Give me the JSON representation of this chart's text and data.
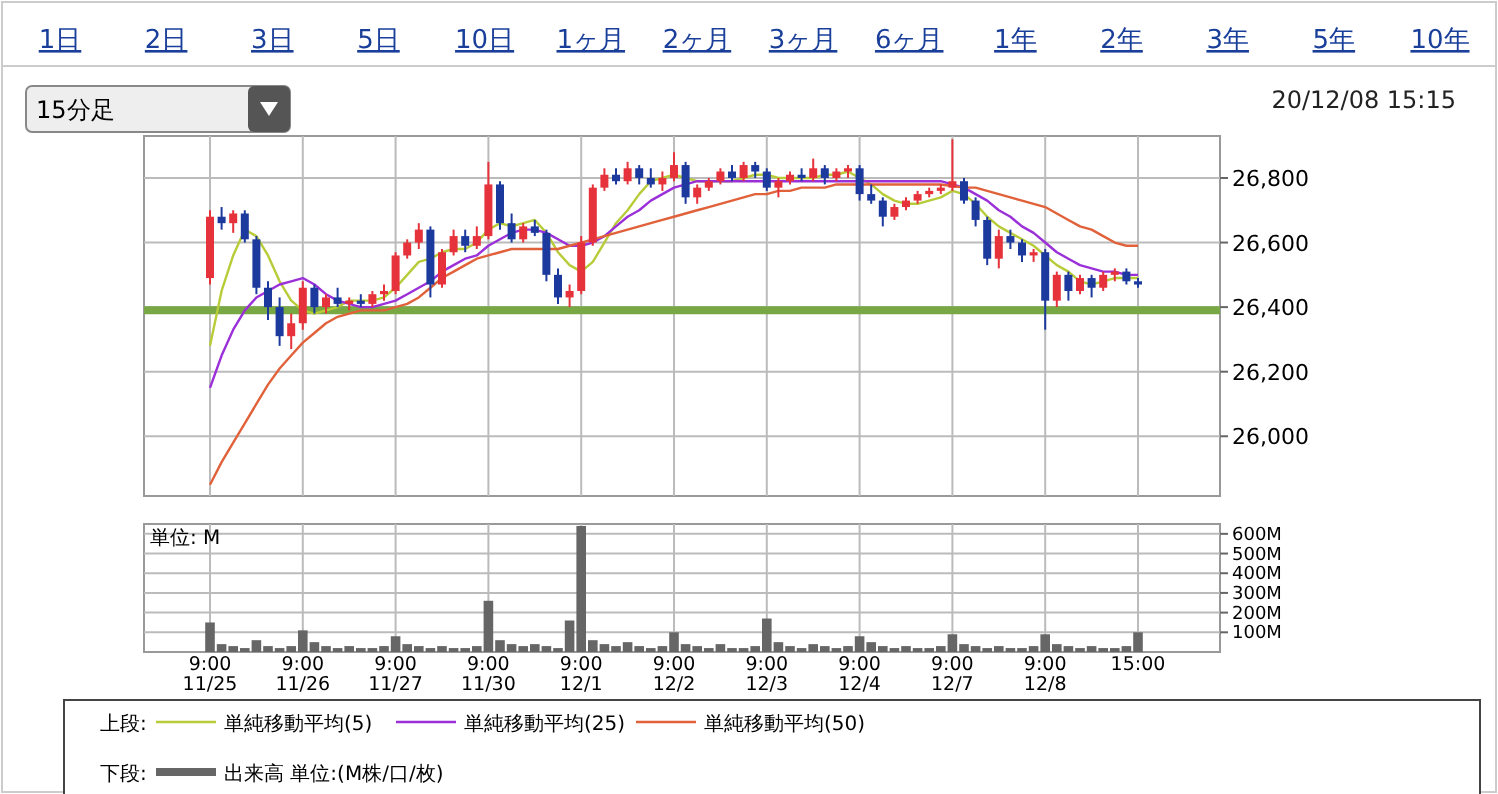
{
  "chart_data": [
    {
      "type": "candlestick",
      "title": null,
      "annotations": [
        "1日",
        "2日",
        "3日",
        "5日",
        "10日",
        "1ヶ月",
        "2ヶ月",
        "3ヶ月",
        "6ヶ月",
        "1年",
        "2年",
        "3年",
        "5年",
        "10年",
        "15分足",
        "20/12/08 15:15"
      ],
      "categories": [
        null,
        null,
        null,
        null,
        null,
        null,
        null,
        null,
        null,
        null,
        null,
        null,
        null,
        null,
        null,
        null,
        null,
        null,
        null,
        null,
        null,
        null,
        null,
        null,
        null,
        null,
        null,
        null,
        null,
        null,
        null,
        null,
        null,
        null,
        null,
        null,
        null,
        null,
        null,
        null,
        null,
        null,
        null,
        null,
        null,
        null,
        null,
        null,
        null,
        null,
        null,
        null,
        null,
        null,
        null,
        null,
        null,
        null,
        null,
        null,
        null,
        null,
        null,
        null,
        null,
        null,
        null,
        null,
        null,
        null,
        null,
        null,
        null,
        null,
        null,
        null,
        null,
        null,
        null,
        null,
        null
      ],
      "ohlc": [
        [
          26490,
          26700,
          26470,
          26680
        ],
        [
          26680,
          26710,
          26640,
          26660
        ],
        [
          26660,
          26700,
          26630,
          26690
        ],
        [
          26690,
          26700,
          26600,
          26610
        ],
        [
          26610,
          26620,
          26440,
          26460
        ],
        [
          26460,
          26480,
          26360,
          26400
        ],
        [
          26400,
          26430,
          26280,
          26310
        ],
        [
          26310,
          26380,
          26270,
          26350
        ],
        [
          26350,
          26480,
          26330,
          26460
        ],
        [
          26460,
          26470,
          26380,
          26400
        ],
        [
          26400,
          26440,
          26380,
          26430
        ],
        [
          26430,
          26460,
          26400,
          26410
        ],
        [
          26410,
          26430,
          26390,
          26420
        ],
        [
          26420,
          26440,
          26400,
          26410
        ],
        [
          26410,
          26450,
          26400,
          26440
        ],
        [
          26440,
          26470,
          26420,
          26450
        ],
        [
          26450,
          26570,
          26440,
          26560
        ],
        [
          26560,
          26610,
          26550,
          26600
        ],
        [
          26600,
          26660,
          26580,
          26640
        ],
        [
          26640,
          26650,
          26430,
          26470
        ],
        [
          26470,
          26580,
          26460,
          26570
        ],
        [
          26570,
          26640,
          26560,
          26620
        ],
        [
          26620,
          26640,
          26570,
          26590
        ],
        [
          26590,
          26650,
          26580,
          26620
        ],
        [
          26620,
          26850,
          26610,
          26780
        ],
        [
          26780,
          26790,
          26640,
          26660
        ],
        [
          26660,
          26690,
          26600,
          26610
        ],
        [
          26610,
          26660,
          26600,
          26650
        ],
        [
          26650,
          26670,
          26620,
          26630
        ],
        [
          26630,
          26640,
          26480,
          26500
        ],
        [
          26500,
          26520,
          26410,
          26430
        ],
        [
          26430,
          26470,
          26400,
          26450
        ],
        [
          26450,
          26620,
          26440,
          26600
        ],
        [
          26600,
          26780,
          26590,
          26770
        ],
        [
          26770,
          26830,
          26760,
          26810
        ],
        [
          26810,
          26830,
          26780,
          26790
        ],
        [
          26790,
          26850,
          26780,
          26830
        ],
        [
          26830,
          26840,
          26780,
          26800
        ],
        [
          26800,
          26830,
          26770,
          26780
        ],
        [
          26780,
          26820,
          26760,
          26800
        ],
        [
          26800,
          26880,
          26790,
          26840
        ],
        [
          26840,
          26850,
          26720,
          26740
        ],
        [
          26740,
          26780,
          26720,
          26770
        ],
        [
          26770,
          26800,
          26760,
          26790
        ],
        [
          26790,
          26830,
          26780,
          26820
        ],
        [
          26820,
          26840,
          26790,
          26800
        ],
        [
          26800,
          26850,
          26790,
          26840
        ],
        [
          26840,
          26850,
          26800,
          26820
        ],
        [
          26820,
          26830,
          26760,
          26770
        ],
        [
          26770,
          26800,
          26740,
          26790
        ],
        [
          26790,
          26820,
          26780,
          26810
        ],
        [
          26810,
          26830,
          26790,
          26800
        ],
        [
          26800,
          26860,
          26790,
          26830
        ],
        [
          26830,
          26840,
          26780,
          26800
        ],
        [
          26800,
          26830,
          26790,
          26820
        ],
        [
          26820,
          26840,
          26800,
          26830
        ],
        [
          26830,
          26840,
          26730,
          26750
        ],
        [
          26750,
          26780,
          26720,
          26730
        ],
        [
          26730,
          26740,
          26650,
          26680
        ],
        [
          26680,
          26720,
          26670,
          26710
        ],
        [
          26710,
          26740,
          26700,
          26730
        ],
        [
          26730,
          26760,
          26720,
          26750
        ],
        [
          26750,
          26770,
          26740,
          26760
        ],
        [
          26760,
          26780,
          26750,
          26770
        ],
        [
          26770,
          26920,
          26760,
          26790
        ],
        [
          26790,
          26800,
          26720,
          26730
        ],
        [
          26730,
          26740,
          26650,
          26670
        ],
        [
          26670,
          26680,
          26530,
          26550
        ],
        [
          26550,
          26640,
          26520,
          26620
        ],
        [
          26620,
          26640,
          26580,
          26600
        ],
        [
          26600,
          26610,
          26540,
          26560
        ],
        [
          26560,
          26580,
          26540,
          26570
        ],
        [
          26570,
          26580,
          26330,
          26420
        ],
        [
          26420,
          26510,
          26400,
          26500
        ],
        [
          26500,
          26510,
          26420,
          26450
        ],
        [
          26450,
          26500,
          26440,
          26490
        ],
        [
          26490,
          26500,
          26430,
          26460
        ],
        [
          26460,
          26510,
          26450,
          26500
        ],
        [
          26500,
          26520,
          26480,
          26510
        ],
        [
          26510,
          26520,
          26470,
          26480
        ],
        [
          26480,
          26490,
          26460,
          26470
        ]
      ],
      "series": [
        {
          "name": "単純移動平均(5)",
          "type": "line",
          "color": "#b8cc3a",
          "values": [
            26280,
            26450,
            26560,
            26640,
            26620,
            26560,
            26480,
            26420,
            26390,
            26380,
            26390,
            26400,
            26420,
            26420,
            26420,
            26430,
            26460,
            26500,
            26540,
            26550,
            26570,
            26580,
            26580,
            26600,
            26640,
            26660,
            26650,
            26660,
            26670,
            26630,
            26570,
            26530,
            26510,
            26540,
            26600,
            26660,
            26700,
            26750,
            26790,
            26800,
            26810,
            26800,
            26790,
            26790,
            26790,
            26790,
            26800,
            26810,
            26810,
            26800,
            26800,
            26800,
            26800,
            26810,
            26810,
            26820,
            26800,
            26780,
            26750,
            26730,
            26720,
            26720,
            26730,
            26740,
            26760,
            26750,
            26720,
            26680,
            26650,
            26630,
            26610,
            26590,
            26560,
            26530,
            26510,
            26480,
            26470,
            26480,
            26490,
            26490,
            26490
          ]
        },
        {
          "name": "単純移動平均(25)",
          "type": "line",
          "color": "#9b30d9",
          "values": [
            26150,
            26250,
            26330,
            26390,
            26430,
            26450,
            26470,
            26480,
            26490,
            26470,
            26440,
            26420,
            26410,
            26400,
            26400,
            26410,
            26420,
            26440,
            26460,
            26480,
            26510,
            26530,
            26550,
            26560,
            26590,
            26610,
            26630,
            26640,
            26640,
            26630,
            26610,
            26590,
            26590,
            26600,
            26620,
            26650,
            26680,
            26700,
            26730,
            26750,
            26770,
            26780,
            26790,
            26790,
            26790,
            26790,
            26790,
            26790,
            26790,
            26790,
            26790,
            26790,
            26790,
            26790,
            26790,
            26790,
            26790,
            26790,
            26790,
            26790,
            26790,
            26790,
            26790,
            26790,
            26780,
            26770,
            26750,
            26730,
            26700,
            26680,
            26650,
            26630,
            26600,
            26570,
            26550,
            26530,
            26520,
            26510,
            26510,
            26500,
            26500
          ]
        },
        {
          "name": "単純移動平均(50)",
          "type": "line",
          "color": "#e0613a",
          "values": [
            25850,
            25920,
            25980,
            26040,
            26100,
            26160,
            26210,
            26250,
            26290,
            26320,
            26350,
            26370,
            26380,
            26390,
            26390,
            26390,
            26400,
            26410,
            26430,
            26460,
            26490,
            26510,
            26530,
            26550,
            26560,
            26570,
            26580,
            26580,
            26580,
            26580,
            26580,
            26590,
            26600,
            26610,
            26620,
            26630,
            26640,
            26650,
            26660,
            26670,
            26680,
            26690,
            26700,
            26710,
            26720,
            26730,
            26740,
            26750,
            26750,
            26760,
            26760,
            26770,
            26770,
            26770,
            26780,
            26780,
            26780,
            26780,
            26780,
            26780,
            26780,
            26780,
            26780,
            26780,
            26775,
            26770,
            26770,
            26760,
            26750,
            26740,
            26730,
            26720,
            26710,
            26690,
            26670,
            26650,
            26640,
            26620,
            26600,
            26590,
            26590
          ]
        }
      ],
      "ylim": [
        25815,
        26930
      ],
      "yticks": [
        {
          "value": 26000,
          "label": "26,000"
        },
        {
          "value": 26200,
          "label": "26,200"
        },
        {
          "value": 26400,
          "label": "26,400"
        },
        {
          "value": 26600,
          "label": "26,600"
        },
        {
          "value": 26800,
          "label": "26,800"
        }
      ],
      "ref_lines": [
        {
          "axis": "y",
          "value": 26390,
          "label": null,
          "color": "#77a843"
        }
      ],
      "grid": true,
      "tick_labels": "y",
      "legend": "bottom",
      "legend_title": "上段:"
    },
    {
      "type": "bar",
      "annotations": [
        "単位: M"
      ],
      "categories": [
        "9:00 11/25",
        null,
        null,
        null,
        null,
        null,
        null,
        null,
        "9:00 11/26",
        null,
        null,
        null,
        null,
        null,
        null,
        null,
        "9:00 11/27",
        null,
        null,
        null,
        null,
        null,
        null,
        null,
        "9:00 11/30",
        null,
        null,
        null,
        null,
        null,
        null,
        null,
        "9:00 12/1",
        null,
        null,
        null,
        null,
        null,
        null,
        null,
        "9:00 12/2",
        null,
        null,
        null,
        null,
        null,
        null,
        null,
        "9:00 12/3",
        null,
        null,
        null,
        null,
        null,
        null,
        null,
        "9:00 12/4",
        null,
        null,
        null,
        null,
        null,
        null,
        null,
        "9:00 12/7",
        null,
        null,
        null,
        null,
        null,
        null,
        null,
        "9:00 12/8",
        null,
        null,
        null,
        null,
        null,
        null,
        null,
        "15:00"
      ],
      "series": [
        {
          "name": "出来高 単位:(M株/口/枚)",
          "color": "#666666",
          "values": [
            150,
            40,
            30,
            20,
            60,
            30,
            20,
            30,
            110,
            50,
            30,
            20,
            30,
            20,
            20,
            30,
            80,
            40,
            30,
            20,
            30,
            20,
            20,
            30,
            260,
            60,
            40,
            30,
            40,
            30,
            20,
            160,
            640,
            60,
            40,
            30,
            50,
            30,
            20,
            30,
            100,
            40,
            30,
            20,
            40,
            20,
            20,
            30,
            170,
            50,
            30,
            20,
            40,
            30,
            20,
            30,
            80,
            50,
            30,
            20,
            30,
            20,
            20,
            30,
            90,
            40,
            30,
            20,
            30,
            20,
            20,
            30,
            90,
            40,
            30,
            20,
            30,
            20,
            20,
            30,
            100
          ]
        }
      ],
      "ylim": [
        0,
        650
      ],
      "yticks": [
        {
          "value": 100,
          "label": "100M"
        },
        {
          "value": 200,
          "label": "200M"
        },
        {
          "value": 300,
          "label": "300M"
        },
        {
          "value": 400,
          "label": "400M"
        },
        {
          "value": 500,
          "label": "500M"
        },
        {
          "value": 600,
          "label": "600M"
        }
      ],
      "grid": true,
      "legend": "bottom",
      "legend_title": "下段:"
    }
  ]
}
